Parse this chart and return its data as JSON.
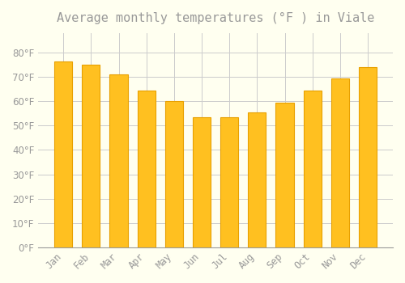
{
  "title": "Average monthly temperatures (°F ) in Viale",
  "months": [
    "Jan",
    "Feb",
    "Mar",
    "Apr",
    "May",
    "Jun",
    "Jul",
    "Aug",
    "Sep",
    "Oct",
    "Nov",
    "Dec"
  ],
  "values": [
    76.5,
    75.0,
    71.0,
    64.5,
    60.0,
    53.5,
    53.5,
    55.5,
    59.5,
    64.5,
    69.5,
    74.0
  ],
  "bar_color": "#FFC020",
  "bar_edge_color": "#E8A000",
  "background_color": "#FFFFF0",
  "grid_color": "#CCCCCC",
  "text_color": "#999999",
  "ylim": [
    0,
    88
  ],
  "yticks": [
    0,
    10,
    20,
    30,
    40,
    50,
    60,
    70,
    80
  ],
  "title_fontsize": 11,
  "tick_fontsize": 8.5
}
